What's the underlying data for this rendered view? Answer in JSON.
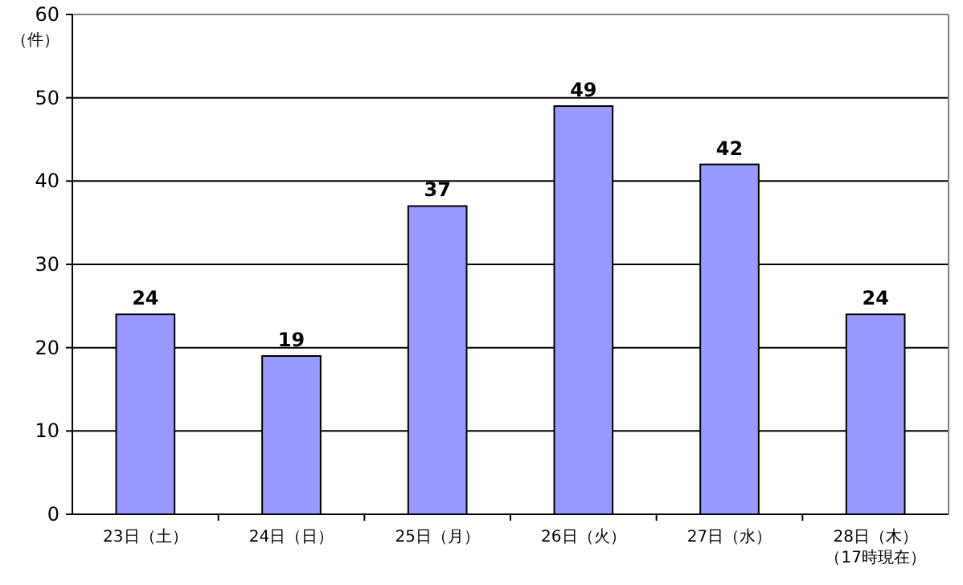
{
  "chart_data": {
    "type": "bar",
    "ylabel": "（件）",
    "categories": [
      "23日（土）",
      "24日（日）",
      "25日（月）",
      "26日（火）",
      "27日（水）",
      "28日（木）（17時現在）"
    ],
    "values": [
      24,
      19,
      37,
      49,
      42,
      24
    ],
    "color": "#9999ff",
    "ylim": [
      0,
      60
    ],
    "yticks": [
      0,
      10,
      20,
      30,
      40,
      50,
      60
    ],
    "grid": "y",
    "data_labels": true
  }
}
